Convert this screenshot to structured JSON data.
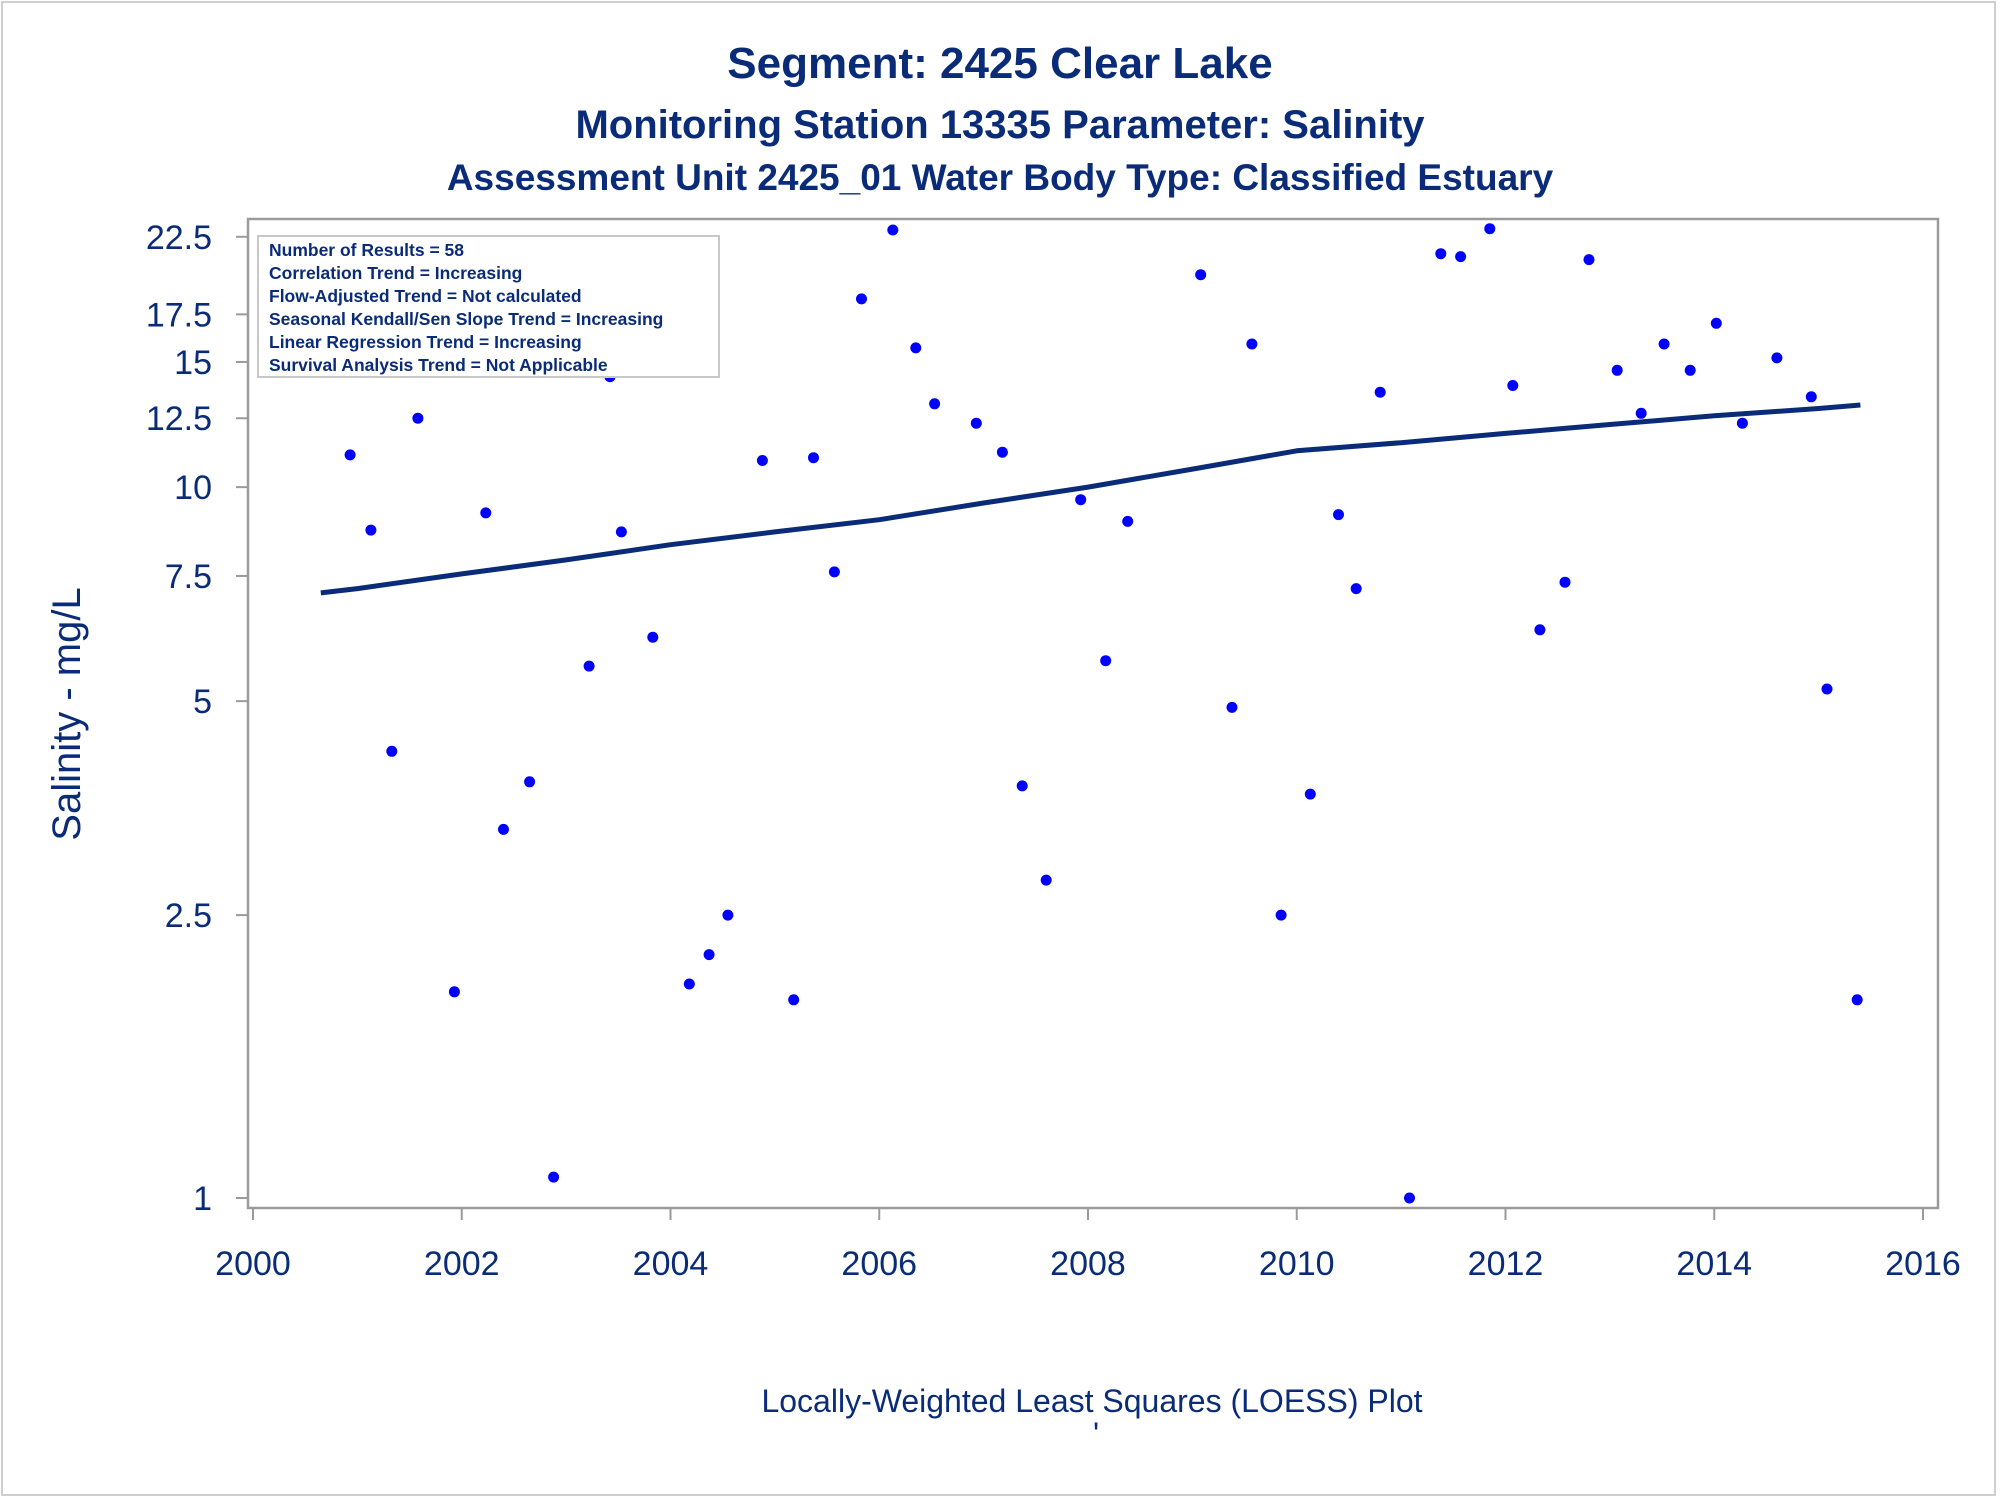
{
  "titles": {
    "line1": "Segment: 2425  Clear Lake",
    "line2": "Monitoring Station 13335 Parameter: Salinity",
    "line3": "Assessment Unit 2425_01   Water Body Type: Classified Estuary"
  },
  "inset": {
    "lines": [
      "Number of Results = 58",
      "Correlation Trend = Increasing",
      "Flow-Adjusted Trend = Not calculated",
      "Seasonal Kendall/Sen Slope Trend = Increasing",
      "Linear Regression Trend = Increasing",
      "Survival Analysis Trend = Not Applicable"
    ]
  },
  "footnote": "Locally-Weighted Least Squares (LOESS) Plot",
  "footnote_mark": "'",
  "colors": {
    "text": "#0a2c78",
    "points": "#0000ff",
    "loess": "#0a2c78",
    "frame": "#9a9a9a",
    "inset_border": "#c8c8c8"
  },
  "chart_data": {
    "type": "scatter",
    "xlabel": "",
    "ylabel": "Salinity - mg/L",
    "xlim": [
      2000,
      2016
    ],
    "ylim": [
      1,
      23
    ],
    "yscale": "log",
    "grid": false,
    "x_ticks": [
      2000,
      2002,
      2004,
      2006,
      2008,
      2010,
      2012,
      2014,
      2016
    ],
    "y_ticks": [
      1,
      2.5,
      5,
      7.5,
      10,
      12.5,
      15,
      17.5,
      22.5
    ],
    "points": [
      [
        2000.65,
        17.2
      ],
      [
        2000.93,
        11.1
      ],
      [
        2001.13,
        8.7
      ],
      [
        2001.33,
        4.25
      ],
      [
        2001.58,
        12.5
      ],
      [
        2001.93,
        1.95
      ],
      [
        2002.23,
        9.2
      ],
      [
        2002.4,
        3.3
      ],
      [
        2002.65,
        3.85
      ],
      [
        2002.88,
        1.07
      ],
      [
        2003.22,
        5.6
      ],
      [
        2003.42,
        14.3
      ],
      [
        2003.53,
        8.65
      ],
      [
        2003.83,
        6.15
      ],
      [
        2004.18,
        2.0
      ],
      [
        2004.37,
        2.2
      ],
      [
        2004.55,
        2.5
      ],
      [
        2004.88,
        10.9
      ],
      [
        2005.18,
        1.9
      ],
      [
        2005.37,
        11.0
      ],
      [
        2005.57,
        7.6
      ],
      [
        2005.83,
        18.4
      ],
      [
        2006.13,
        23.0
      ],
      [
        2006.35,
        15.7
      ],
      [
        2006.53,
        13.1
      ],
      [
        2006.93,
        12.3
      ],
      [
        2007.18,
        11.2
      ],
      [
        2007.37,
        3.8
      ],
      [
        2007.6,
        2.8
      ],
      [
        2007.93,
        9.6
      ],
      [
        2008.17,
        5.7
      ],
      [
        2008.38,
        8.95
      ],
      [
        2009.08,
        19.9
      ],
      [
        2009.38,
        4.9
      ],
      [
        2009.57,
        15.9
      ],
      [
        2009.85,
        2.5
      ],
      [
        2010.13,
        3.7
      ],
      [
        2010.4,
        9.15
      ],
      [
        2010.57,
        7.2
      ],
      [
        2010.8,
        13.6
      ],
      [
        2011.08,
        1.0
      ],
      [
        2011.38,
        21.3
      ],
      [
        2011.57,
        21.1
      ],
      [
        2011.85,
        23.1
      ],
      [
        2012.07,
        13.9
      ],
      [
        2012.33,
        6.3
      ],
      [
        2012.57,
        7.35
      ],
      [
        2012.8,
        20.9
      ],
      [
        2013.07,
        14.6
      ],
      [
        2013.3,
        12.7
      ],
      [
        2013.52,
        15.9
      ],
      [
        2013.77,
        14.6
      ],
      [
        2014.02,
        17.0
      ],
      [
        2014.27,
        12.3
      ],
      [
        2014.6,
        15.2
      ],
      [
        2014.93,
        13.4
      ],
      [
        2015.08,
        5.2
      ],
      [
        2015.37,
        1.9
      ]
    ],
    "series": [
      {
        "type": "line",
        "points": [
          [
            2000.65,
            7.1
          ],
          [
            2001.0,
            7.2
          ],
          [
            2002.0,
            7.55
          ],
          [
            2003.0,
            7.9
          ],
          [
            2004.0,
            8.3
          ],
          [
            2005.0,
            8.65
          ],
          [
            2006.0,
            9.0
          ],
          [
            2007.0,
            9.5
          ],
          [
            2008.0,
            10.0
          ],
          [
            2009.0,
            10.6
          ],
          [
            2010.0,
            11.25
          ],
          [
            2011.0,
            11.55
          ],
          [
            2012.0,
            11.9
          ],
          [
            2013.0,
            12.25
          ],
          [
            2014.0,
            12.6
          ],
          [
            2015.0,
            12.9
          ],
          [
            2015.4,
            13.05
          ]
        ]
      }
    ]
  }
}
